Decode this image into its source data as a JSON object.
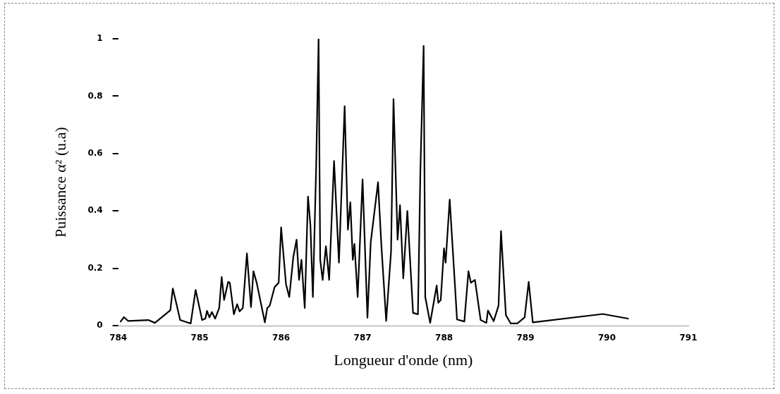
{
  "chart_data": {
    "type": "line",
    "xlabel": "Longueur d'onde (nm)",
    "ylabel": "Puissance α² (u.a)",
    "xlim": [
      784,
      791
    ],
    "xticks": [
      784,
      785,
      786,
      787,
      788,
      789,
      790,
      791
    ],
    "ylim": [
      0,
      1
    ],
    "yticks": [
      0,
      0.2,
      0.4,
      0.6,
      0.8,
      1
    ],
    "grid": false,
    "legend": false,
    "marker": "none",
    "line_style": "solid",
    "series": [
      {
        "color": "#000000",
        "x": [
          784.03,
          784.07,
          784.12,
          784.37,
          784.45,
          784.64,
          784.67,
          784.72,
          784.76,
          784.89,
          784.95,
          785.03,
          785.07,
          785.09,
          785.12,
          785.15,
          785.19,
          785.24,
          785.27,
          785.3,
          785.35,
          785.37,
          785.42,
          785.46,
          785.49,
          785.53,
          785.58,
          785.63,
          785.66,
          785.7,
          785.8,
          785.83,
          785.86,
          785.92,
          785.97,
          786,
          786.06,
          786.1,
          786.15,
          786.19,
          786.22,
          786.25,
          786.29,
          786.33,
          786.36,
          786.39,
          786.43,
          786.46,
          786.48,
          786.51,
          786.55,
          786.59,
          786.65,
          786.71,
          786.78,
          786.82,
          786.85,
          786.88,
          786.9,
          786.94,
          787,
          787.06,
          787.1,
          787.19,
          787.23,
          787.29,
          787.35,
          787.38,
          787.43,
          787.46,
          787.5,
          787.55,
          787.62,
          787.68,
          787.71,
          787.75,
          787.77,
          787.83,
          787.91,
          787.93,
          787.96,
          788,
          788.02,
          788.07,
          788.16,
          788.25,
          788.3,
          788.33,
          788.38,
          788.45,
          788.52,
          788.54,
          788.61,
          788.67,
          788.7,
          788.76,
          788.82,
          788.9,
          788.99,
          789.04,
          789.09,
          789.95,
          790.26
        ],
        "values": [
          0.015,
          0.03,
          0.017,
          0.02,
          0.01,
          0.054,
          0.13,
          0.07,
          0.02,
          0.008,
          0.125,
          0.02,
          0.025,
          0.052,
          0.029,
          0.048,
          0.025,
          0.062,
          0.17,
          0.09,
          0.153,
          0.15,
          0.04,
          0.075,
          0.05,
          0.062,
          0.252,
          0.065,
          0.19,
          0.15,
          0.012,
          0.062,
          0.07,
          0.135,
          0.15,
          0.343,
          0.145,
          0.1,
          0.24,
          0.3,
          0.16,
          0.23,
          0.062,
          0.45,
          0.35,
          0.1,
          0.55,
          1,
          0.23,
          0.16,
          0.277,
          0.16,
          0.574,
          0.22,
          0.765,
          0.335,
          0.43,
          0.23,
          0.285,
          0.1,
          0.51,
          0.028,
          0.29,
          0.5,
          0.285,
          0.017,
          0.26,
          0.79,
          0.3,
          0.42,
          0.165,
          0.4,
          0.045,
          0.04,
          0.54,
          0.975,
          0.1,
          0.01,
          0.14,
          0.08,
          0.09,
          0.27,
          0.22,
          0.44,
          0.022,
          0.015,
          0.19,
          0.15,
          0.16,
          0.02,
          0.01,
          0.053,
          0.016,
          0.07,
          0.33,
          0.037,
          0.008,
          0.008,
          0.029,
          0.153,
          0.012,
          0.041,
          0.025
        ]
      }
    ]
  }
}
